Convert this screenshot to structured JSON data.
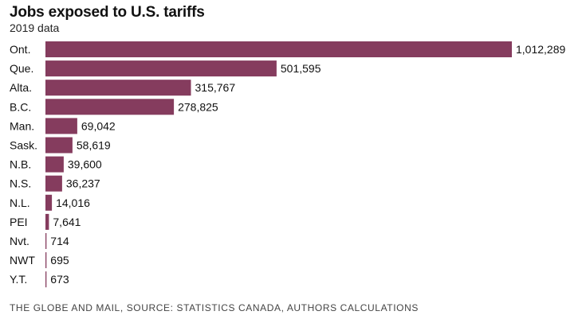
{
  "title": "Jobs exposed to U.S. tariffs",
  "subtitle": "2019 data",
  "source": "THE GLOBE AND MAIL, SOURCE: STATISTICS CANADA, AUTHORS CALCULATIONS",
  "colors": {
    "bar": "#853c5e"
  },
  "chart_data": {
    "type": "bar",
    "orientation": "horizontal",
    "title": "Jobs exposed to U.S. tariffs",
    "subtitle": "2019 data",
    "categories": [
      "Ont.",
      "Que.",
      "Alta.",
      "B.C.",
      "Man.",
      "Sask.",
      "N.B.",
      "N.S.",
      "N.L.",
      "PEI",
      "Nvt.",
      "NWT",
      "Y.T."
    ],
    "values": [
      1012289,
      501595,
      315767,
      278825,
      69042,
      58619,
      39600,
      36237,
      14016,
      7641,
      714,
      695,
      673
    ],
    "value_labels": [
      "1,012,289",
      "501,595",
      "315,767",
      "278,825",
      "69,042",
      "58,619",
      "39,600",
      "36,237",
      "14,016",
      "7,641",
      "714",
      "695",
      "673"
    ],
    "xlim": [
      0,
      1012289
    ],
    "xlabel": "",
    "ylabel": "",
    "grid": false,
    "legend": "none"
  }
}
